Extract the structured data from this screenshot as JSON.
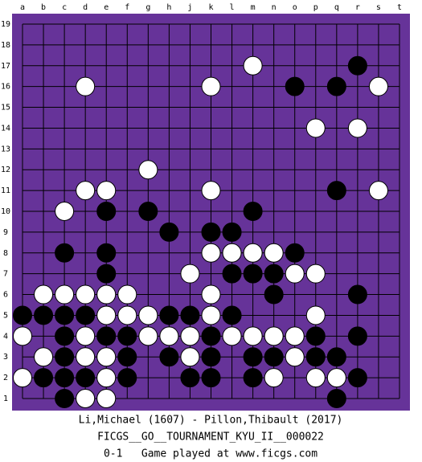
{
  "board": {
    "columns": [
      "a",
      "b",
      "c",
      "d",
      "e",
      "f",
      "g",
      "h",
      "j",
      "k",
      "l",
      "m",
      "n",
      "o",
      "p",
      "q",
      "r",
      "s",
      "t"
    ],
    "rows": [
      19,
      18,
      17,
      16,
      15,
      14,
      13,
      12,
      11,
      10,
      9,
      8,
      7,
      6,
      5,
      4,
      3,
      2,
      1
    ],
    "stones": [
      {
        "col": "m",
        "row": 17,
        "color": "white"
      },
      {
        "col": "r",
        "row": 17,
        "color": "black"
      },
      {
        "col": "d",
        "row": 16,
        "color": "white"
      },
      {
        "col": "k",
        "row": 16,
        "color": "white"
      },
      {
        "col": "o",
        "row": 16,
        "color": "black"
      },
      {
        "col": "q",
        "row": 16,
        "color": "black"
      },
      {
        "col": "s",
        "row": 16,
        "color": "white"
      },
      {
        "col": "p",
        "row": 14,
        "color": "white"
      },
      {
        "col": "r",
        "row": 14,
        "color": "white"
      },
      {
        "col": "g",
        "row": 12,
        "color": "white"
      },
      {
        "col": "d",
        "row": 11,
        "color": "white"
      },
      {
        "col": "e",
        "row": 11,
        "color": "white"
      },
      {
        "col": "k",
        "row": 11,
        "color": "white"
      },
      {
        "col": "q",
        "row": 11,
        "color": "black"
      },
      {
        "col": "s",
        "row": 11,
        "color": "white"
      },
      {
        "col": "c",
        "row": 10,
        "color": "white"
      },
      {
        "col": "e",
        "row": 10,
        "color": "black"
      },
      {
        "col": "g",
        "row": 10,
        "color": "black"
      },
      {
        "col": "m",
        "row": 10,
        "color": "black"
      },
      {
        "col": "h",
        "row": 9,
        "color": "black"
      },
      {
        "col": "k",
        "row": 9,
        "color": "black"
      },
      {
        "col": "l",
        "row": 9,
        "color": "black"
      },
      {
        "col": "c",
        "row": 8,
        "color": "black"
      },
      {
        "col": "e",
        "row": 8,
        "color": "black"
      },
      {
        "col": "k",
        "row": 8,
        "color": "white"
      },
      {
        "col": "l",
        "row": 8,
        "color": "white"
      },
      {
        "col": "m",
        "row": 8,
        "color": "white"
      },
      {
        "col": "n",
        "row": 8,
        "color": "white"
      },
      {
        "col": "o",
        "row": 8,
        "color": "black"
      },
      {
        "col": "e",
        "row": 7,
        "color": "black"
      },
      {
        "col": "j",
        "row": 7,
        "color": "white"
      },
      {
        "col": "l",
        "row": 7,
        "color": "black"
      },
      {
        "col": "m",
        "row": 7,
        "color": "black"
      },
      {
        "col": "n",
        "row": 7,
        "color": "black"
      },
      {
        "col": "o",
        "row": 7,
        "color": "white"
      },
      {
        "col": "p",
        "row": 7,
        "color": "white"
      },
      {
        "col": "b",
        "row": 6,
        "color": "white"
      },
      {
        "col": "c",
        "row": 6,
        "color": "white"
      },
      {
        "col": "d",
        "row": 6,
        "color": "white"
      },
      {
        "col": "e",
        "row": 6,
        "color": "white"
      },
      {
        "col": "f",
        "row": 6,
        "color": "white"
      },
      {
        "col": "k",
        "row": 6,
        "color": "white"
      },
      {
        "col": "n",
        "row": 6,
        "color": "black"
      },
      {
        "col": "r",
        "row": 6,
        "color": "black"
      },
      {
        "col": "a",
        "row": 5,
        "color": "black"
      },
      {
        "col": "b",
        "row": 5,
        "color": "black"
      },
      {
        "col": "c",
        "row": 5,
        "color": "black"
      },
      {
        "col": "d",
        "row": 5,
        "color": "black"
      },
      {
        "col": "e",
        "row": 5,
        "color": "white"
      },
      {
        "col": "f",
        "row": 5,
        "color": "white"
      },
      {
        "col": "g",
        "row": 5,
        "color": "white"
      },
      {
        "col": "h",
        "row": 5,
        "color": "black"
      },
      {
        "col": "j",
        "row": 5,
        "color": "black"
      },
      {
        "col": "k",
        "row": 5,
        "color": "white"
      },
      {
        "col": "l",
        "row": 5,
        "color": "black"
      },
      {
        "col": "p",
        "row": 5,
        "color": "white"
      },
      {
        "col": "a",
        "row": 4,
        "color": "white"
      },
      {
        "col": "c",
        "row": 4,
        "color": "black"
      },
      {
        "col": "d",
        "row": 4,
        "color": "white"
      },
      {
        "col": "e",
        "row": 4,
        "color": "black"
      },
      {
        "col": "f",
        "row": 4,
        "color": "black"
      },
      {
        "col": "g",
        "row": 4,
        "color": "white"
      },
      {
        "col": "h",
        "row": 4,
        "color": "white"
      },
      {
        "col": "j",
        "row": 4,
        "color": "white"
      },
      {
        "col": "k",
        "row": 4,
        "color": "black"
      },
      {
        "col": "l",
        "row": 4,
        "color": "white"
      },
      {
        "col": "m",
        "row": 4,
        "color": "white"
      },
      {
        "col": "n",
        "row": 4,
        "color": "white"
      },
      {
        "col": "o",
        "row": 4,
        "color": "white"
      },
      {
        "col": "p",
        "row": 4,
        "color": "black"
      },
      {
        "col": "r",
        "row": 4,
        "color": "black"
      },
      {
        "col": "b",
        "row": 3,
        "color": "white"
      },
      {
        "col": "c",
        "row": 3,
        "color": "black"
      },
      {
        "col": "d",
        "row": 3,
        "color": "white"
      },
      {
        "col": "e",
        "row": 3,
        "color": "white"
      },
      {
        "col": "f",
        "row": 3,
        "color": "black"
      },
      {
        "col": "h",
        "row": 3,
        "color": "black"
      },
      {
        "col": "j",
        "row": 3,
        "color": "white"
      },
      {
        "col": "k",
        "row": 3,
        "color": "black"
      },
      {
        "col": "m",
        "row": 3,
        "color": "black"
      },
      {
        "col": "n",
        "row": 3,
        "color": "black"
      },
      {
        "col": "o",
        "row": 3,
        "color": "white"
      },
      {
        "col": "p",
        "row": 3,
        "color": "black"
      },
      {
        "col": "q",
        "row": 3,
        "color": "black"
      },
      {
        "col": "a",
        "row": 2,
        "color": "white"
      },
      {
        "col": "b",
        "row": 2,
        "color": "black"
      },
      {
        "col": "c",
        "row": 2,
        "color": "black"
      },
      {
        "col": "d",
        "row": 2,
        "color": "black"
      },
      {
        "col": "e",
        "row": 2,
        "color": "white"
      },
      {
        "col": "f",
        "row": 2,
        "color": "black"
      },
      {
        "col": "j",
        "row": 2,
        "color": "black"
      },
      {
        "col": "k",
        "row": 2,
        "color": "black"
      },
      {
        "col": "m",
        "row": 2,
        "color": "black"
      },
      {
        "col": "n",
        "row": 2,
        "color": "white"
      },
      {
        "col": "p",
        "row": 2,
        "color": "white"
      },
      {
        "col": "q",
        "row": 2,
        "color": "white"
      },
      {
        "col": "r",
        "row": 2,
        "color": "black"
      },
      {
        "col": "c",
        "row": 1,
        "color": "black"
      },
      {
        "col": "d",
        "row": 1,
        "color": "white"
      },
      {
        "col": "e",
        "row": 1,
        "color": "white"
      },
      {
        "col": "q",
        "row": 1,
        "color": "black"
      }
    ]
  },
  "footer": {
    "players": "Li,Michael (1607) - Pillon,Thibault (2017)",
    "event": "FICGS__GO__TOURNAMENT_KYU_II__000022",
    "result": "0-1   Game played at www.ficgs.com"
  }
}
